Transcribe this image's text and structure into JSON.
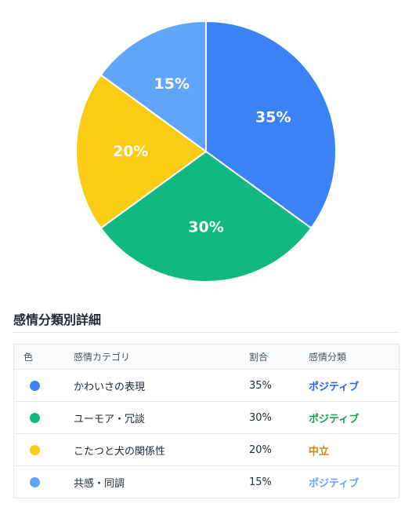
{
  "chart_data": {
    "type": "pie",
    "categories": [
      "かわいさの表現",
      "ユーモア・冗談",
      "こたつと犬の関係性",
      "共感・同調"
    ],
    "values": [
      35,
      30,
      20,
      15
    ],
    "labels": [
      "35%",
      "30%",
      "20%",
      "15%"
    ],
    "colors": [
      "#3b82f6",
      "#10b981",
      "#facc15",
      "#60a5fa"
    ]
  },
  "section": {
    "title": "感情分類別詳細"
  },
  "table": {
    "headers": {
      "color": "色",
      "category": "感情カテゴリ",
      "ratio": "割合",
      "sentiment": "感情分類"
    },
    "rows": [
      {
        "color": "#3b82f6",
        "category": "かわいさの表現",
        "ratio": "35%",
        "sentiment": "ポジティブ",
        "sentiment_color": "#2563eb"
      },
      {
        "color": "#10b981",
        "category": "ユーモア・冗談",
        "ratio": "30%",
        "sentiment": "ポジティブ",
        "sentiment_color": "#16a34a"
      },
      {
        "color": "#facc15",
        "category": "こたつと犬の関係性",
        "ratio": "20%",
        "sentiment": "中立",
        "sentiment_color": "#ca8a04"
      },
      {
        "color": "#60a5fa",
        "category": "共感・同調",
        "ratio": "15%",
        "sentiment": "ポジティブ",
        "sentiment_color": "#60a5fa"
      }
    ]
  }
}
